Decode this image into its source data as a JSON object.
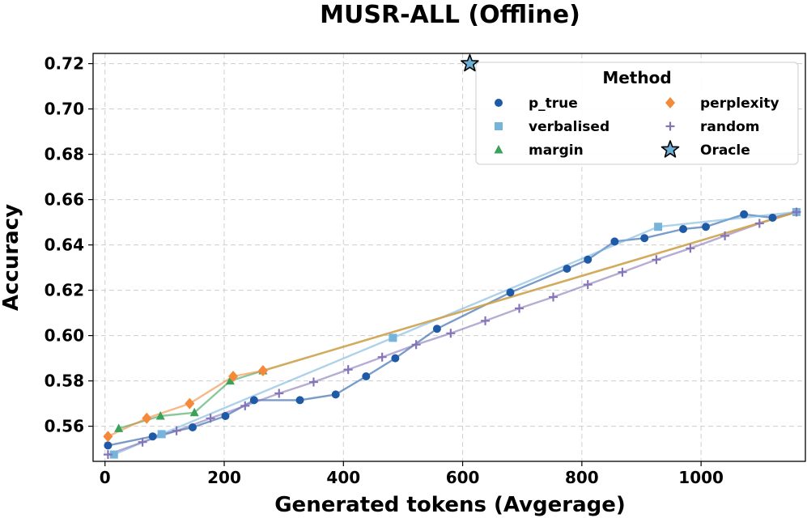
{
  "chart_data": {
    "type": "line",
    "title": "MUSR-ALL (Offline)",
    "xlabel": "Generated tokens (Avgerage)",
    "ylabel": "Accuracy",
    "xlim": [
      -20,
      1175
    ],
    "ylim": [
      0.5445,
      0.7245
    ],
    "xticks": [
      0,
      200,
      400,
      600,
      800,
      1000
    ],
    "yticks": [
      0.56,
      0.58,
      0.6,
      0.62,
      0.64,
      0.66,
      0.68,
      0.7,
      0.72
    ],
    "xtick_labels": [
      "0",
      "200",
      "400",
      "600",
      "800",
      "1000"
    ],
    "ytick_labels": [
      "0.56",
      "0.58",
      "0.60",
      "0.62",
      "0.64",
      "0.66",
      "0.68",
      "0.70",
      "0.72"
    ],
    "grid": true,
    "legend": {
      "title": "Method",
      "placement": "top-right",
      "columns": 2
    },
    "series": [
      {
        "name": "p_true",
        "color": "#1f5aa6",
        "marker": "circle",
        "points": [
          [
            5,
            0.5515
          ],
          [
            80,
            0.5555
          ],
          [
            147,
            0.5595
          ],
          [
            202,
            0.5645
          ],
          [
            250,
            0.5715
          ],
          [
            327,
            0.5715
          ],
          [
            387,
            0.574
          ],
          [
            438,
            0.582
          ],
          [
            487,
            0.59
          ],
          [
            557,
            0.603
          ],
          [
            680,
            0.619
          ],
          [
            775,
            0.6295
          ],
          [
            810,
            0.6335
          ],
          [
            855,
            0.6415
          ],
          [
            905,
            0.643
          ],
          [
            970,
            0.647
          ],
          [
            1008,
            0.648
          ],
          [
            1072,
            0.6535
          ],
          [
            1120,
            0.652
          ],
          [
            1160,
            0.6545
          ]
        ]
      },
      {
        "name": "verbalised",
        "color": "#76b4dc",
        "marker": "square",
        "points": [
          [
            15,
            0.5475
          ],
          [
            95,
            0.5565
          ],
          [
            483,
            0.599
          ],
          [
            928,
            0.648
          ],
          [
            1160,
            0.6545
          ]
        ]
      },
      {
        "name": "margin",
        "color": "#3aa25a",
        "marker": "triangle",
        "points": [
          [
            23,
            0.559
          ],
          [
            93,
            0.5645
          ],
          [
            150,
            0.566
          ],
          [
            210,
            0.58
          ],
          [
            265,
            0.5845
          ]
        ]
      },
      {
        "name": "perplexity",
        "color": "#f5893a",
        "marker": "diamond",
        "points": [
          [
            5,
            0.5555
          ],
          [
            70,
            0.5635
          ],
          [
            142,
            0.57
          ],
          [
            215,
            0.582
          ],
          [
            265,
            0.5845
          ]
        ]
      },
      {
        "name": "random",
        "color": "#8574b8",
        "marker": "plus",
        "points": [
          [
            5,
            0.5475
          ],
          [
            63,
            0.553
          ],
          [
            120,
            0.558
          ],
          [
            177,
            0.5635
          ],
          [
            235,
            0.569
          ],
          [
            292,
            0.5745
          ],
          [
            350,
            0.5795
          ],
          [
            408,
            0.585
          ],
          [
            465,
            0.5905
          ],
          [
            522,
            0.596
          ],
          [
            580,
            0.601
          ],
          [
            638,
            0.6065
          ],
          [
            695,
            0.612
          ],
          [
            752,
            0.617
          ],
          [
            810,
            0.6225
          ],
          [
            868,
            0.628
          ],
          [
            925,
            0.6335
          ],
          [
            982,
            0.6385
          ],
          [
            1040,
            0.644
          ],
          [
            1098,
            0.6495
          ],
          [
            1160,
            0.6545
          ]
        ]
      },
      {
        "name": "Oracle",
        "color": "#6baed6",
        "marker": "star",
        "points": [
          [
            612,
            0.72
          ]
        ]
      }
    ],
    "overlay_lines": [
      {
        "color": "#cda24c",
        "points": [
          [
            265,
            0.5845
          ],
          [
            1160,
            0.6545
          ]
        ]
      }
    ]
  }
}
